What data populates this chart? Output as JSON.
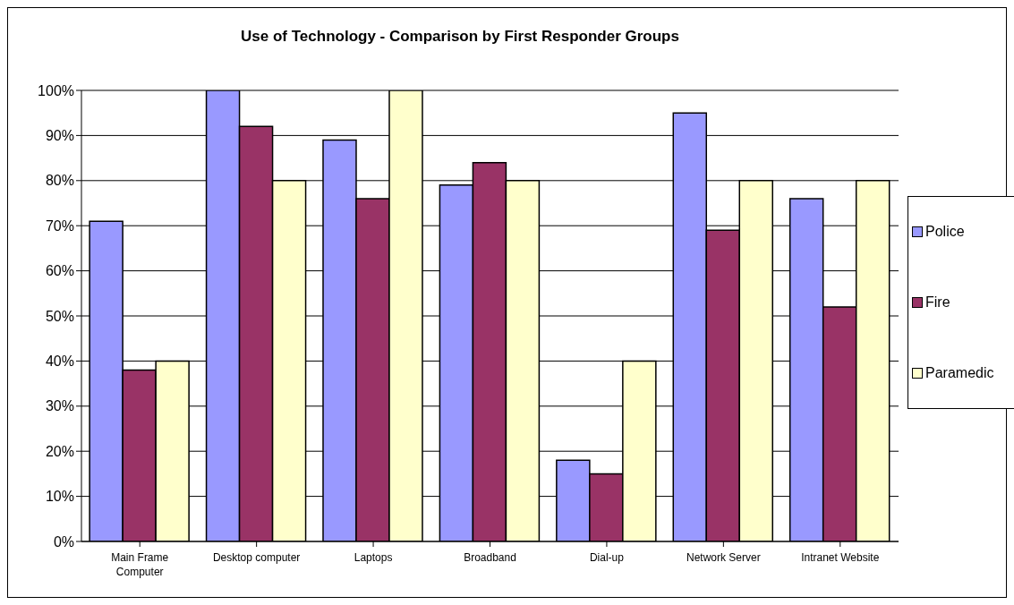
{
  "chart_data": {
    "type": "bar",
    "title": "Use of Technology - Comparison by First Responder Groups",
    "categories": [
      "Main Frame Computer",
      "Desktop computer",
      "Laptops",
      "Broadband",
      "Dial-up",
      "Network Server",
      "Intranet Website"
    ],
    "series": [
      {
        "name": "Police",
        "color": "#9999ff",
        "values": [
          71,
          100,
          89,
          79,
          18,
          95,
          76
        ]
      },
      {
        "name": "Fire",
        "color": "#993366",
        "values": [
          38,
          92,
          76,
          84,
          15,
          69,
          52
        ]
      },
      {
        "name": "Paramedic",
        "color": "#ffffcc",
        "values": [
          40,
          80,
          100,
          80,
          40,
          80,
          80
        ]
      }
    ],
    "ylim": [
      0,
      100
    ],
    "yticks": [
      {
        "value": 0,
        "label": "0%"
      },
      {
        "value": 10,
        "label": "10%"
      },
      {
        "value": 20,
        "label": "20%"
      },
      {
        "value": 30,
        "label": "30%"
      },
      {
        "value": 40,
        "label": "40%"
      },
      {
        "value": 50,
        "label": "50%"
      },
      {
        "value": 60,
        "label": "60%"
      },
      {
        "value": 70,
        "label": "70%"
      },
      {
        "value": 80,
        "label": "80%"
      },
      {
        "value": 90,
        "label": "90%"
      },
      {
        "value": 100,
        "label": "100%"
      }
    ],
    "grid": "y",
    "legend": "right"
  }
}
